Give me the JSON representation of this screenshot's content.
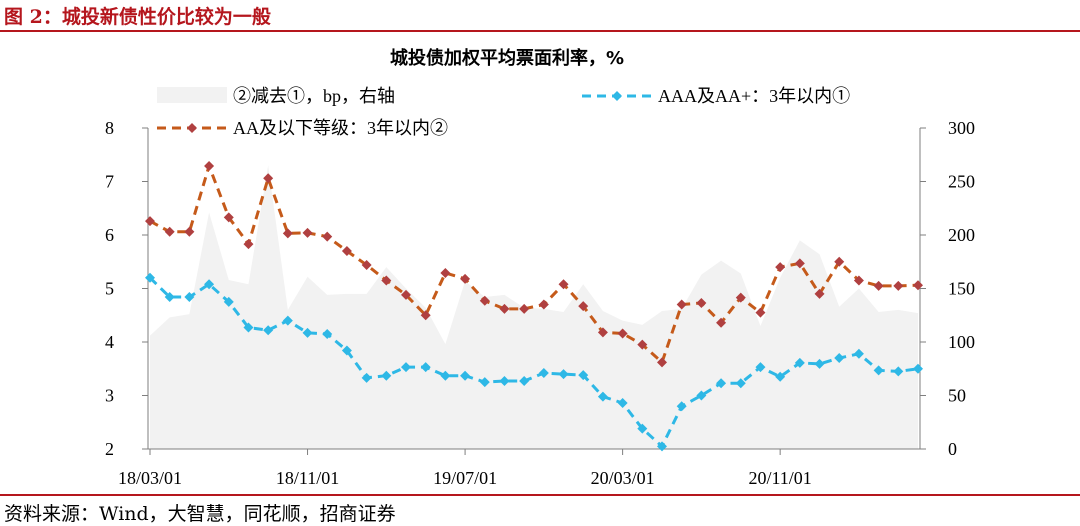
{
  "figure_title": "图 2：城投新债性价比较为一般",
  "source": "资料来源：Wind，大智慧，同花顺，招商证券",
  "chart_data": {
    "type": "line",
    "title": "城投债加权平均票面利率，%",
    "x_tick_labels": [
      "18/03/01",
      "18/11/01",
      "19/07/01",
      "20/03/01",
      "20/11/01"
    ],
    "y_left": {
      "ylim": [
        2,
        8
      ],
      "ticks": [
        "2",
        "3",
        "4",
        "5",
        "6",
        "7",
        "8"
      ]
    },
    "y_right": {
      "ylim": [
        0,
        300
      ],
      "ticks": [
        "0",
        "50",
        "100",
        "150",
        "200",
        "250",
        "300"
      ]
    },
    "grid": false,
    "legend_position": "top",
    "x": [
      "18/03",
      "18/04",
      "18/05",
      "18/06",
      "18/07",
      "18/08",
      "18/09",
      "18/10",
      "18/11",
      "18/12",
      "19/01",
      "19/02",
      "19/03",
      "19/04",
      "19/05",
      "19/06",
      "19/07",
      "19/08",
      "19/09",
      "19/10",
      "19/11",
      "19/12",
      "20/01",
      "20/02",
      "20/03",
      "20/04",
      "20/05",
      "20/06",
      "20/07",
      "20/08",
      "20/09",
      "20/10",
      "20/11",
      "20/12",
      "21/01",
      "21/02",
      "21/03",
      "21/04",
      "21/05",
      "21/06"
    ],
    "series": [
      {
        "name": "②减去①，bp，右轴",
        "type": "area",
        "axis": "right",
        "color": "#f2f2f2",
        "values": [
          106,
          123,
          126,
          221,
          158,
          154,
          265,
          130,
          161,
          144,
          145,
          145,
          170,
          150,
          132,
          98,
          157,
          142,
          144,
          132,
          131,
          128,
          154,
          129,
          120,
          116,
          129,
          131,
          163,
          176,
          164,
          115,
          160,
          195,
          182,
          133,
          150,
          128,
          130,
          127
        ]
      },
      {
        "name": "AAA及AA+：3年以内①",
        "type": "line",
        "axis": "left",
        "color": "#2eb8e6",
        "values": [
          5.2,
          4.84,
          4.84,
          5.08,
          4.75,
          4.27,
          4.22,
          4.4,
          4.17,
          4.15,
          3.84,
          3.33,
          3.37,
          3.53,
          3.53,
          3.37,
          3.37,
          3.25,
          3.27,
          3.27,
          3.42,
          3.4,
          3.38,
          2.98,
          2.86,
          2.38,
          2.05,
          2.8,
          3.0,
          3.23,
          3.23,
          3.53,
          3.35,
          3.61,
          3.59,
          3.7,
          3.78,
          3.47,
          3.45,
          3.5
        ]
      },
      {
        "name": "AA及以下等级：3年以内②",
        "type": "line",
        "axis": "left",
        "color": "#c55a1a",
        "marker_color": "#b04040",
        "values": [
          6.26,
          6.06,
          6.06,
          7.29,
          6.33,
          5.83,
          7.06,
          6.03,
          6.04,
          5.97,
          5.7,
          5.44,
          5.15,
          4.88,
          4.5,
          5.29,
          5.18,
          4.77,
          4.62,
          4.62,
          4.7,
          5.08,
          4.67,
          4.18,
          4.16,
          3.95,
          3.62,
          4.7,
          4.73,
          4.36,
          4.83,
          4.55,
          5.4,
          5.47,
          4.9,
          5.5,
          5.15,
          5.05,
          5.05,
          5.06
        ]
      }
    ]
  }
}
